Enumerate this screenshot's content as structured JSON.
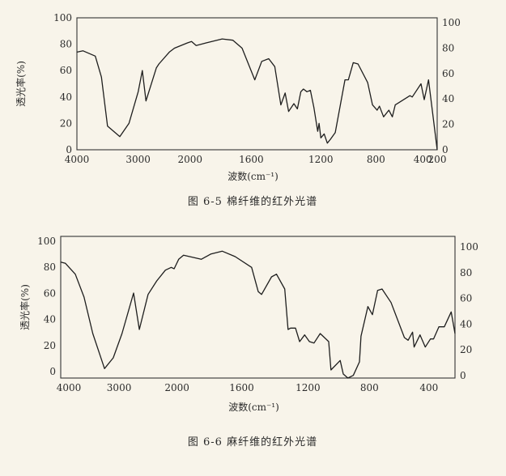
{
  "chart_data": [
    {
      "type": "line",
      "title": "图 6-5   棉纤维的红外光谱",
      "xlabel": "波数(cm⁻¹)",
      "ylabel": "透光率(%)",
      "xlim": [
        4000,
        200
      ],
      "ylim": [
        0,
        100
      ],
      "x_ticks": [
        "4000",
        "3000",
        "2000",
        "1600",
        "1200",
        "800",
        "400",
        "200"
      ],
      "y_ticks": [
        "0",
        "20",
        "40",
        "60",
        "80",
        "100"
      ],
      "y_ticks_right": [
        "0",
        "20",
        "40",
        "60",
        "80",
        "100"
      ],
      "grid": false,
      "line_color": "#1e1e1e",
      "x": [
        4000,
        3900,
        3700,
        3600,
        3500,
        3300,
        3150,
        3000,
        2920,
        2850,
        2650,
        2600,
        2400,
        2300,
        2050,
        1990,
        1960,
        1895,
        1790,
        1720,
        1660,
        1580,
        1540,
        1500,
        1465,
        1430,
        1405,
        1385,
        1355,
        1335,
        1315,
        1300,
        1280,
        1260,
        1240,
        1218,
        1210,
        1200,
        1176,
        1153,
        1130,
        1095,
        1025,
        1000,
        965,
        930,
        860,
        825,
        790,
        770,
        735,
        690,
        660,
        635,
        510,
        490,
        415,
        380,
        320,
        200
      ],
      "y": [
        74,
        75,
        71,
        55,
        18,
        10,
        20,
        44,
        60,
        37,
        62,
        65,
        74,
        77,
        81,
        82,
        79,
        81,
        84,
        83,
        77,
        53,
        67,
        69,
        63,
        34,
        43,
        29,
        35,
        31,
        44,
        46,
        44,
        45,
        32,
        14,
        20,
        9,
        12,
        5,
        8,
        13,
        53,
        53,
        66,
        65,
        51,
        34,
        30,
        33,
        25,
        30,
        25,
        34,
        41,
        40,
        50,
        38,
        53,
        0
      ]
    },
    {
      "type": "line",
      "title": "图 6-6   麻纤维的红外光谱",
      "xlabel": "波数(cm⁻¹)",
      "ylabel": "透光率(%)",
      "xlim": [
        4000,
        230
      ],
      "ylim": [
        -5,
        100
      ],
      "x_ticks": [
        "4000",
        "3000",
        "2000",
        "1600",
        "1200",
        "800",
        "400"
      ],
      "y_ticks": [
        "0",
        "20",
        "40",
        "60",
        "80",
        "100"
      ],
      "y_ticks_right": [
        "0",
        "20",
        "40",
        "60",
        "80",
        "100"
      ],
      "grid": false,
      "line_color": "#1e1e1e",
      "x": [
        4000,
        3920,
        3750,
        3600,
        3450,
        3250,
        3100,
        2950,
        2750,
        2650,
        2500,
        2350,
        2200,
        2100,
        2050,
        1990,
        1960,
        1850,
        1790,
        1720,
        1640,
        1540,
        1500,
        1480,
        1420,
        1390,
        1340,
        1320,
        1305,
        1275,
        1250,
        1220,
        1190,
        1160,
        1120,
        1065,
        1050,
        990,
        970,
        940,
        905,
        865,
        855,
        810,
        780,
        745,
        715,
        655,
        565,
        540,
        510,
        500,
        460,
        425,
        390,
        370,
        335,
        300,
        255,
        230
      ],
      "y": [
        81,
        80,
        72,
        55,
        28,
        2,
        10,
        28,
        58,
        31,
        57,
        67,
        75,
        77,
        76,
        83,
        86,
        83,
        87,
        89,
        85,
        77,
        59,
        57,
        70,
        72,
        61,
        31,
        32,
        32,
        22,
        27,
        22,
        21,
        28,
        22,
        1,
        8,
        -2,
        -5,
        -3,
        7,
        26,
        48,
        42,
        60,
        61,
        51,
        25,
        23,
        29,
        18,
        27,
        18,
        24,
        24,
        33,
        33,
        44,
        28
      ]
    }
  ]
}
